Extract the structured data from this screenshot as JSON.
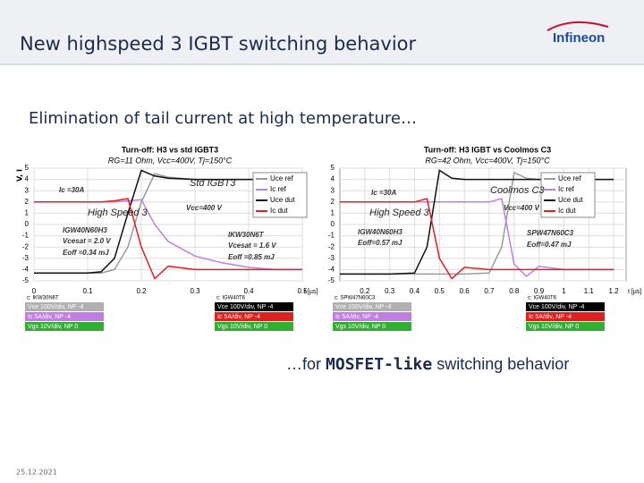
{
  "header": {
    "title": "New highspeed 3 IGBT switching behavior",
    "logo": "Infineon"
  },
  "subtitle": "Elimination of tail current at high temperature…",
  "tagline": [
    "…for ",
    "MOSFET-like",
    " switching behavior"
  ],
  "footer": {
    "date": "25.12.2021"
  },
  "chart_data": [
    {
      "type": "line",
      "title": "Turn-off: H3 vs std IGBT3",
      "subtitle": "RG=11 Ohm, Vcc=400V, Tj=150°C",
      "y_label": "V, I",
      "x_label": "t [µs]",
      "x": [
        0,
        0.05,
        0.1,
        0.125,
        0.15,
        0.175,
        0.2,
        0.225,
        0.25,
        0.3,
        0.35,
        0.4,
        0.45,
        0.5
      ],
      "xlim": [
        0,
        0.5
      ],
      "xticks": [
        0,
        0.1,
        0.2,
        0.3,
        0.4,
        0.5
      ],
      "ylim": [
        -5,
        5
      ],
      "yticks": [
        5,
        4,
        3,
        2,
        1,
        0,
        -1,
        -2,
        -3,
        -4,
        -5
      ],
      "grid": true,
      "series": [
        {
          "name": "Uce ref",
          "color": "#9a9a9a",
          "values": [
            -4.3,
            -4.3,
            -4.3,
            -4.3,
            -4,
            -2,
            2,
            4.5,
            4.2,
            4,
            4,
            4,
            4,
            4
          ]
        },
        {
          "name": "Ic ref",
          "color": "#c07ee0",
          "values": [
            2,
            2,
            2,
            2,
            2,
            2.1,
            2.2,
            0,
            -1.5,
            -2.8,
            -3.4,
            -3.8,
            -4,
            -4
          ]
        },
        {
          "name": "Uce dut",
          "color": "#111111",
          "values": [
            -4.3,
            -4.3,
            -4.3,
            -4.2,
            -3,
            1,
            4.8,
            4.3,
            4.1,
            4,
            4,
            4,
            4,
            4
          ]
        },
        {
          "name": "Ic dut",
          "color": "#e02020",
          "values": [
            2,
            2,
            2,
            2,
            2.1,
            2.3,
            -2,
            -4.8,
            -3.7,
            -4,
            -4,
            -4,
            -4,
            -4
          ]
        }
      ],
      "annotations": [
        "Std IGBT3",
        "High Speed 3",
        "Ic =30A",
        "Vcc=400 V",
        "IGW40N60H3",
        "Vcesat = 2.0 V",
        "Eoff =0.34 mJ",
        "IKW30N6T",
        "Vcesat = 1.6 V",
        "Eoff =0.85 mJ"
      ],
      "scope_boxes": [
        {
          "title": "c: IKW30N6T",
          "lines": [
            "Vce 100V/div, NP -4",
            "Ic 5A/div, NP -4",
            "Vgs 10V/div, NP 0"
          ]
        },
        {
          "title": "c: IGW40T6",
          "lines": [
            "Vce 100V/div, NP -4",
            "Ic 5A/div, NP -4",
            "Vgs 10V/div, NP 0"
          ]
        }
      ]
    },
    {
      "type": "line",
      "title": "Turn-off: H3 IGBT vs Coolmos C3",
      "subtitle": "RG=42 Ohm, Vcc=400V, Tj=150°C",
      "x_label": "t [µs]",
      "x": [
        0.1,
        0.2,
        0.3,
        0.4,
        0.45,
        0.5,
        0.55,
        0.6,
        0.7,
        0.75,
        0.8,
        0.85,
        0.9,
        1.0,
        1.1,
        1.2
      ],
      "xlim": [
        0.1,
        1.25
      ],
      "xticks": [
        0.2,
        0.3,
        0.4,
        0.5,
        0.6,
        0.7,
        0.8,
        0.9,
        1,
        1.1,
        1.2
      ],
      "ylim": [
        -5,
        5
      ],
      "yticks": [
        5,
        4,
        3,
        2,
        1,
        0,
        -1,
        -2,
        -3,
        -4,
        -5
      ],
      "grid": true,
      "series": [
        {
          "name": "Uce ref",
          "color": "#9a9a9a",
          "values": [
            -4.4,
            -4.4,
            -4.4,
            -4.4,
            -4.4,
            -4.4,
            -4.4,
            -4.4,
            -4.3,
            -2,
            4.6,
            4.1,
            4,
            4,
            4,
            4
          ]
        },
        {
          "name": "Ic ref",
          "color": "#c07ee0",
          "values": [
            2,
            2,
            2,
            2,
            2,
            2,
            2,
            2,
            2,
            2.3,
            -3.5,
            -4.6,
            -3.7,
            -4,
            -4,
            -4
          ]
        },
        {
          "name": "Uce dut",
          "color": "#111111",
          "values": [
            -4.4,
            -4.4,
            -4.4,
            -4.3,
            -2,
            4.8,
            4.1,
            4,
            4,
            4,
            4,
            4,
            4,
            4,
            4,
            4
          ]
        },
        {
          "name": "Ic dut",
          "color": "#e02020",
          "values": [
            2,
            2,
            2,
            2,
            2.3,
            -3,
            -4.8,
            -3.8,
            -4,
            -4,
            -4,
            -4,
            -4,
            -4,
            -4,
            -4
          ]
        }
      ],
      "annotations": [
        "Coolmos C3",
        "High Speed 3",
        "Ic =30A",
        "Vcc=400 V",
        "IGW40N60H3",
        "Eoff=0.57 mJ",
        "SPW47N60C3",
        "Eoff=0.47 mJ"
      ],
      "scope_boxes": [
        {
          "title": "c: SPW47N60C3",
          "lines": [
            "Vce 100V/div, NP -4",
            "Ic 5A/div, NP -4",
            "Vgs 10V/div, NP 0"
          ]
        },
        {
          "title": "c: IGW40T6",
          "lines": [
            "Vce 100V/div, NP -4",
            "Ic 5A/div, NP -4",
            "Vgs 10V/div, NP 0"
          ]
        }
      ]
    }
  ]
}
